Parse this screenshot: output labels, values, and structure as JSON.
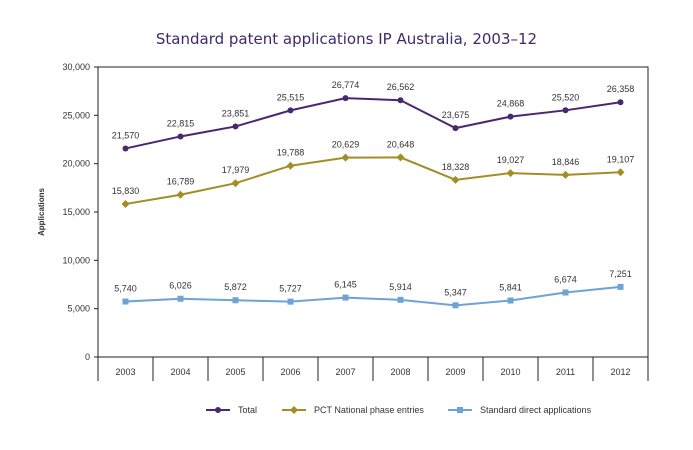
{
  "chart_data": {
    "type": "line",
    "title": "Standard patent applications IP Australia, 2003–12",
    "xlabel": "",
    "ylabel": "Applications",
    "categories": [
      "2003",
      "2004",
      "2005",
      "2006",
      "2007",
      "2008",
      "2009",
      "2010",
      "2011",
      "2012"
    ],
    "ylim": [
      0,
      30000
    ],
    "yticks": [
      0,
      5000,
      10000,
      15000,
      20000,
      25000,
      30000
    ],
    "ytick_labels": [
      "0",
      "5,000",
      "10,000",
      "15,000",
      "20,000",
      "25,000",
      "30,000"
    ],
    "grid": false,
    "legend_position": "bottom",
    "series": [
      {
        "name": "Total",
        "color": "#4b2770",
        "marker": "circle",
        "values": [
          21570,
          22815,
          23851,
          25515,
          26774,
          26562,
          23675,
          24868,
          25520,
          26358
        ],
        "labels": [
          "21,570",
          "22,815",
          "23,851",
          "25,515",
          "26,774",
          "26,562",
          "23,675",
          "24,868",
          "25,520",
          "26,358"
        ]
      },
      {
        "name": "PCT National phase entries",
        "color": "#a48e24",
        "marker": "diamond",
        "values": [
          15830,
          16789,
          17979,
          19788,
          20629,
          20648,
          18328,
          19027,
          18846,
          19107
        ],
        "labels": [
          "15,830",
          "16,789",
          "17,979",
          "19,788",
          "20,629",
          "20,648",
          "18,328",
          "19,027",
          "18,846",
          "19,107"
        ]
      },
      {
        "name": "Standard direct applications",
        "color": "#6ea3d6",
        "marker": "square",
        "values": [
          5740,
          6026,
          5872,
          5727,
          6145,
          5914,
          5347,
          5841,
          6674,
          7251
        ],
        "labels": [
          "5,740",
          "6,026",
          "5,872",
          "5,727",
          "6,145",
          "5,914",
          "5,347",
          "5,841",
          "6,674",
          "7,251"
        ]
      }
    ]
  }
}
